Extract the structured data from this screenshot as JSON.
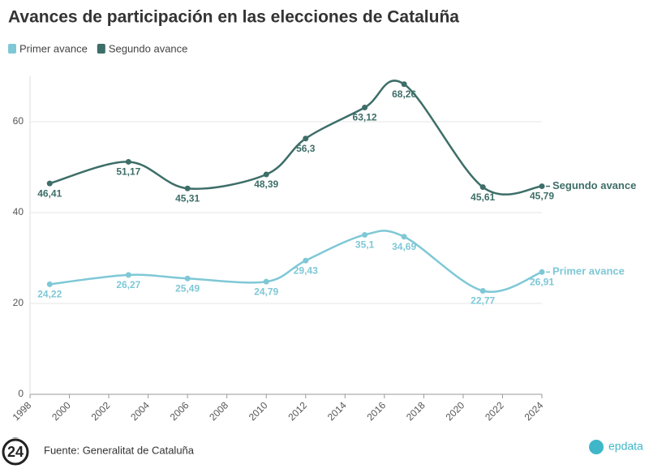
{
  "chart_data": {
    "type": "line",
    "title": "Avances de participación en las elecciones de Cataluña",
    "source": "Fuente: Generalitat de Cataluña",
    "brand": "epdata",
    "logo": "24",
    "x": [
      1999,
      2003,
      2006,
      2010,
      2012,
      2015,
      2017,
      2021,
      2024
    ],
    "xlim": [
      1998,
      2024
    ],
    "xticks": [
      1998,
      2000,
      2002,
      2004,
      2006,
      2008,
      2010,
      2012,
      2014,
      2016,
      2018,
      2020,
      2022,
      2024
    ],
    "ylim": [
      0,
      70
    ],
    "yticks": [
      0,
      20,
      40,
      60
    ],
    "grid": true,
    "series": [
      {
        "name": "Primer avance",
        "color": "#7ec8d6",
        "values": [
          24.22,
          26.27,
          25.49,
          24.79,
          29.43,
          35.1,
          34.69,
          22.77,
          26.91
        ],
        "value_labels": [
          "24,22",
          "26,27",
          "25,49",
          "24,79",
          "29,43",
          "35,1",
          "34,69",
          "22,77",
          "26,91"
        ]
      },
      {
        "name": "Segundo avance",
        "color": "#3d6e68",
        "values": [
          46.41,
          51.17,
          45.31,
          48.39,
          56.3,
          63.12,
          68.26,
          45.61,
          45.79
        ],
        "value_labels": [
          "46,41",
          "51,17",
          "45,31",
          "48,39",
          "56,3",
          "63,12",
          "68,26",
          "45,61",
          "45,79"
        ]
      }
    ]
  }
}
